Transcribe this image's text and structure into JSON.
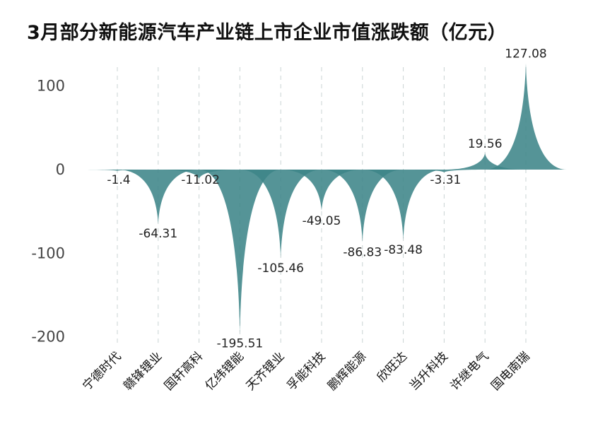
{
  "chart_data": {
    "type": "area",
    "title": "3月部分新能源汽车产业链上市企业市值涨跌额（亿元）",
    "categories": [
      "宁德时代",
      "赣锋锂业",
      "国轩高科",
      "亿纬锂能",
      "天齐锂业",
      "孚能科技",
      "鹏辉能源",
      "欣旺达",
      "当升科技",
      "许继电气",
      "国电南瑞"
    ],
    "values": [
      -1.4,
      -64.31,
      -11.02,
      -195.51,
      -105.46,
      -49.05,
      -86.83,
      -83.48,
      -3.31,
      19.56,
      127.08
    ],
    "value_labels": [
      "-1.4",
      "-64.31",
      "-11.02",
      "-195.51",
      "-105.46",
      "-49.05",
      "-86.83",
      "-83.48",
      "-3.31",
      "19.56",
      "127.08"
    ],
    "yticks": [
      "100",
      "0",
      "-100",
      "-200"
    ],
    "ylim": [
      -200,
      127.08
    ],
    "grid": "vertical-dashed",
    "legend": "none",
    "colors": {
      "fill": "#3d8589",
      "grid": "#c9d3d3",
      "text": "#222222"
    }
  }
}
